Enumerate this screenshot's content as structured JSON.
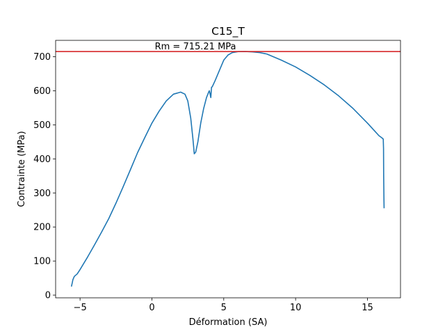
{
  "chart_data": {
    "type": "line",
    "title": "C15_T",
    "xlabel": "Déformation (SA)",
    "ylabel": "Contrainte (MPa)",
    "xlim": [
      -6.7,
      17.3
    ],
    "ylim": [
      -8,
      748
    ],
    "xticks": [
      -5,
      0,
      5,
      10,
      15
    ],
    "yticks": [
      0,
      100,
      200,
      300,
      400,
      500,
      600,
      700
    ],
    "grid": false,
    "series": [
      {
        "color": "#1f77b4",
        "x": [
          -5.6,
          -5.55,
          -5.5,
          -5.4,
          -5.2,
          -5.0,
          -4.5,
          -4.0,
          -3.5,
          -3.0,
          -2.5,
          -2.0,
          -1.5,
          -1.0,
          -0.5,
          0.0,
          0.5,
          1.0,
          1.5,
          2.0,
          2.3,
          2.5,
          2.7,
          2.85,
          2.95,
          3.05,
          3.2,
          3.4,
          3.6,
          3.8,
          3.95,
          4.0,
          4.05,
          4.1,
          4.15,
          4.2,
          4.4,
          4.7,
          5.0,
          5.3,
          5.6,
          6.0,
          6.5,
          7.0,
          7.5,
          8.0,
          9.0,
          10.0,
          11.0,
          12.0,
          13.0,
          14.0,
          15.0,
          15.5,
          15.8,
          16.0,
          16.1,
          16.12,
          16.13,
          16.15,
          16.16
        ],
        "y": [
          25,
          35,
          45,
          55,
          62,
          75,
          110,
          147,
          185,
          225,
          270,
          318,
          368,
          418,
          462,
          505,
          540,
          570,
          590,
          596,
          590,
          570,
          520,
          460,
          415,
          420,
          450,
          505,
          548,
          580,
          596,
          600,
          590,
          580,
          610,
          612,
          630,
          660,
          690,
          705,
          712,
          715,
          715.2,
          714,
          712,
          708,
          690,
          670,
          645,
          617,
          585,
          548,
          505,
          482,
          468,
          462,
          458,
          430,
          350,
          280,
          255
        ]
      }
    ],
    "hline": {
      "y": 715.21,
      "color": "#d62728",
      "label": "Rm = 715.21 MPa"
    }
  }
}
